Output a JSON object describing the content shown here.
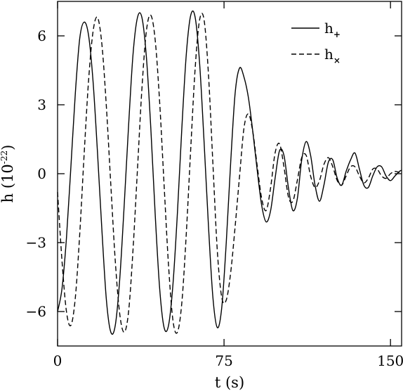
{
  "chart_data": {
    "type": "line",
    "xlabel": "t (s)",
    "ylabel": "h (10^-22)",
    "ylabel_parts": {
      "base": "h (10",
      "exponent": "-22",
      "close": ")"
    },
    "xlim": [
      0,
      155
    ],
    "ylim": [
      -7.5,
      7.5
    ],
    "x_ticks": [
      0,
      75,
      150
    ],
    "y_ticks": [
      -6,
      -3,
      0,
      3,
      6
    ],
    "x_tick_labels": [
      "0",
      "75",
      "150"
    ],
    "y_tick_labels": [
      "−6",
      "−3",
      "0",
      "3",
      "6"
    ],
    "grid": false,
    "legend_position": "top-right",
    "series": [
      {
        "name": "h+",
        "label_base": "h",
        "label_subscript": "+",
        "style": "solid",
        "color": "#000000",
        "points": [
          [
            0,
            -6.0
          ],
          [
            2,
            -5.0
          ],
          [
            4,
            -2.8
          ],
          [
            6,
            0.3
          ],
          [
            8,
            3.5
          ],
          [
            10,
            5.9
          ],
          [
            12,
            6.6
          ],
          [
            14,
            6.0
          ],
          [
            16,
            4.0
          ],
          [
            18,
            0.9
          ],
          [
            20,
            -2.5
          ],
          [
            22,
            -5.5
          ],
          [
            24,
            -6.9
          ],
          [
            26,
            -6.6
          ],
          [
            28,
            -4.6
          ],
          [
            30,
            -1.4
          ],
          [
            32,
            2.1
          ],
          [
            34,
            5.2
          ],
          [
            36,
            6.8
          ],
          [
            38,
            6.8
          ],
          [
            40,
            5.1
          ],
          [
            42,
            2.0
          ],
          [
            44,
            -1.8
          ],
          [
            46,
            -5.0
          ],
          [
            48,
            -6.7
          ],
          [
            50,
            -6.6
          ],
          [
            52,
            -4.8
          ],
          [
            54,
            -1.7
          ],
          [
            56,
            2.0
          ],
          [
            58,
            5.2
          ],
          [
            60,
            6.9
          ],
          [
            62,
            6.8
          ],
          [
            64,
            4.8
          ],
          [
            66,
            1.4
          ],
          [
            68,
            -2.3
          ],
          [
            70,
            -5.4
          ],
          [
            72,
            -6.7
          ],
          [
            74,
            -5.8
          ],
          [
            76,
            -3.0
          ],
          [
            78,
            0.5
          ],
          [
            80,
            3.5
          ],
          [
            82,
            4.6
          ],
          [
            84,
            4.2
          ],
          [
            86,
            3.3
          ],
          [
            88,
            1.8
          ],
          [
            90,
            0.1
          ],
          [
            92,
            -1.4
          ],
          [
            94,
            -2.1
          ],
          [
            96,
            -1.6
          ],
          [
            98,
            -0.2
          ],
          [
            100,
            1.0
          ],
          [
            102,
            0.8
          ],
          [
            104,
            -0.6
          ],
          [
            106,
            -1.6
          ],
          [
            108,
            -1.1
          ],
          [
            110,
            0.6
          ],
          [
            112,
            1.4
          ],
          [
            114,
            0.8
          ],
          [
            116,
            -0.5
          ],
          [
            118,
            -1.2
          ],
          [
            120,
            -0.5
          ],
          [
            122,
            0.5
          ],
          [
            124,
            0.6
          ],
          [
            126,
            -0.2
          ],
          [
            128,
            -0.5
          ],
          [
            130,
            0.1
          ],
          [
            132,
            0.6
          ],
          [
            134,
            0.9
          ],
          [
            136,
            0.2
          ],
          [
            138,
            -0.5
          ],
          [
            140,
            -0.6
          ],
          [
            142,
            -0.1
          ],
          [
            144,
            0.3
          ],
          [
            146,
            0.3
          ],
          [
            148,
            -0.1
          ],
          [
            150,
            -0.3
          ],
          [
            152,
            -0.1
          ],
          [
            154,
            0.1
          ],
          [
            155,
            0.15
          ]
        ]
      },
      {
        "name": "h×",
        "label_base": "h",
        "label_subscript": "×",
        "style": "dashed",
        "color": "#000000",
        "points": [
          [
            0,
            -0.8
          ],
          [
            2,
            -3.8
          ],
          [
            4,
            -6.0
          ],
          [
            6,
            -6.6
          ],
          [
            8,
            -5.4
          ],
          [
            10,
            -2.6
          ],
          [
            12,
            0.9
          ],
          [
            14,
            4.1
          ],
          [
            16,
            6.2
          ],
          [
            18,
            6.8
          ],
          [
            20,
            5.6
          ],
          [
            22,
            2.9
          ],
          [
            24,
            -0.5
          ],
          [
            26,
            -3.8
          ],
          [
            28,
            -6.1
          ],
          [
            30,
            -6.9
          ],
          [
            32,
            -6.0
          ],
          [
            34,
            -3.3
          ],
          [
            36,
            0.2
          ],
          [
            38,
            3.7
          ],
          [
            40,
            6.2
          ],
          [
            42,
            6.9
          ],
          [
            44,
            5.8
          ],
          [
            46,
            3.1
          ],
          [
            48,
            -0.5
          ],
          [
            50,
            -4.0
          ],
          [
            52,
            -6.4
          ],
          [
            54,
            -6.9
          ],
          [
            56,
            -5.6
          ],
          [
            58,
            -2.6
          ],
          [
            60,
            1.1
          ],
          [
            62,
            4.6
          ],
          [
            64,
            6.7
          ],
          [
            66,
            6.7
          ],
          [
            68,
            4.3
          ],
          [
            70,
            0.4
          ],
          [
            72,
            -3.4
          ],
          [
            74,
            -5.4
          ],
          [
            76,
            -5.5
          ],
          [
            78,
            -4.3
          ],
          [
            80,
            -2.3
          ],
          [
            82,
            -0.1
          ],
          [
            84,
            2.0
          ],
          [
            86,
            2.6
          ],
          [
            88,
            1.8
          ],
          [
            90,
            0.3
          ],
          [
            92,
            -1.1
          ],
          [
            94,
            -1.6
          ],
          [
            96,
            -0.6
          ],
          [
            98,
            0.9
          ],
          [
            100,
            1.3
          ],
          [
            102,
            0.3
          ],
          [
            104,
            -1.0
          ],
          [
            106,
            -1.2
          ],
          [
            108,
            -0.3
          ],
          [
            110,
            0.7
          ],
          [
            112,
            0.8
          ],
          [
            114,
            -0.1
          ],
          [
            116,
            -0.6
          ],
          [
            118,
            -0.3
          ],
          [
            120,
            0.4
          ],
          [
            122,
            0.7
          ],
          [
            124,
            0.3
          ],
          [
            126,
            -0.3
          ],
          [
            128,
            -0.5
          ],
          [
            130,
            -0.1
          ],
          [
            132,
            0.3
          ],
          [
            134,
            0.3
          ],
          [
            136,
            -0.1
          ],
          [
            138,
            -0.4
          ],
          [
            140,
            -0.2
          ],
          [
            142,
            0.2
          ],
          [
            144,
            0.2
          ],
          [
            146,
            -0.1
          ],
          [
            148,
            -0.2
          ],
          [
            150,
            0.0
          ],
          [
            152,
            0.1
          ],
          [
            154,
            0.05
          ],
          [
            155,
            0.0
          ]
        ]
      }
    ]
  }
}
